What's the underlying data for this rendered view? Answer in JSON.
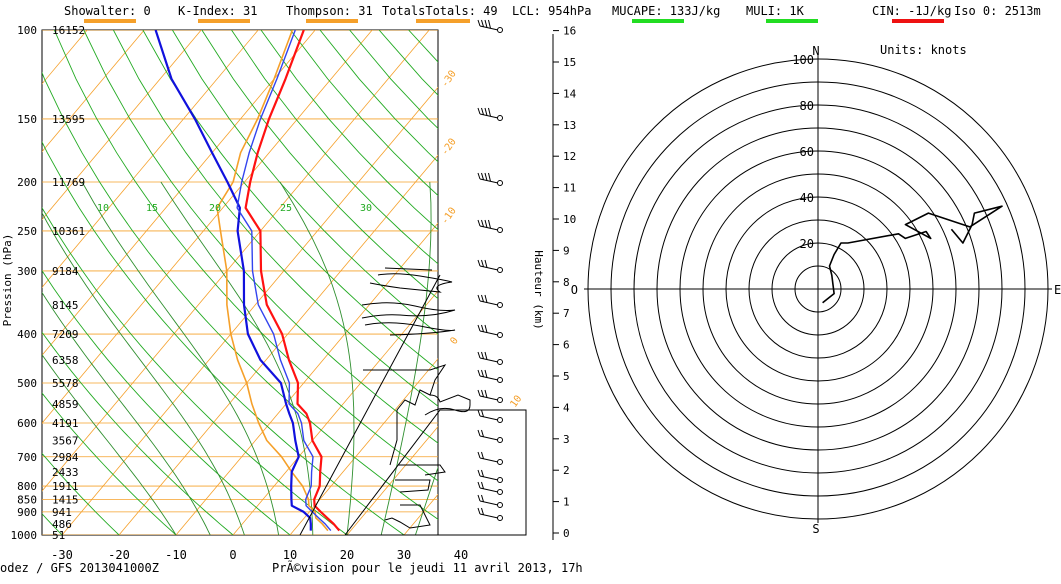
{
  "header": {
    "indices": [
      {
        "label": "Showalter: 0",
        "color": "#f5a02a"
      },
      {
        "label": "K-Index: 31",
        "color": "#f5a02a"
      },
      {
        "label": "Thompson: 31",
        "color": "#f5a02a"
      },
      {
        "label": "TotalsTotals: 49",
        "color": "#f5a02a"
      },
      {
        "label": "LCL: 954hPa",
        "color": ""
      },
      {
        "label": "MUCAPE: 133J/kg",
        "color": "#22dd22"
      },
      {
        "label": "MULI: 1K",
        "color": "#22dd22"
      },
      {
        "label": "CIN: -1J/kg",
        "color": "#ee1111"
      },
      {
        "label": "Iso 0: 2513m",
        "color": ""
      }
    ]
  },
  "footer": {
    "left": "odez / GFS 2013041000Z",
    "center": "PrÃ©vision pour le jeudi 11 avril 2013, 17h"
  },
  "skewt": {
    "ylabel": "Pression (hPa)",
    "right_label": "Hauteur (km)",
    "pressure_ticks": [
      100,
      150,
      200,
      250,
      300,
      400,
      500,
      600,
      700,
      800,
      850,
      900,
      1000
    ],
    "temp_ticks": [
      -30,
      -20,
      -10,
      0,
      10,
      20,
      30,
      40
    ],
    "height_ticks": [
      0,
      1,
      2,
      3,
      4,
      5,
      6,
      7,
      8,
      9,
      10,
      11,
      12,
      13,
      14,
      15,
      16
    ],
    "geopotential_labels": [
      {
        "p": 100,
        "text": "16152"
      },
      {
        "p": 150,
        "text": "13595"
      },
      {
        "p": 200,
        "text": "11769"
      },
      {
        "p": 250,
        "text": "10361"
      },
      {
        "p": 300,
        "text": "9184"
      },
      {
        "p": 350,
        "text": "8145"
      },
      {
        "p": 400,
        "text": "7209"
      },
      {
        "p": 450,
        "text": "6358"
      },
      {
        "p": 500,
        "text": "5578"
      },
      {
        "p": 550,
        "text": "4859"
      },
      {
        "p": 600,
        "text": "4191"
      },
      {
        "p": 650,
        "text": "3567"
      },
      {
        "p": 700,
        "text": "2984"
      },
      {
        "p": 750,
        "text": "2433"
      },
      {
        "p": 800,
        "text": "1911"
      },
      {
        "p": 850,
        "text": "1415"
      },
      {
        "p": 900,
        "text": "941"
      },
      {
        "p": 950,
        "text": "486"
      },
      {
        "p": 1000,
        "text": "51"
      }
    ],
    "isotherm_labels": [
      "-30",
      "-20",
      "-10",
      "0",
      "10"
    ],
    "mixing_ratio_labels": [
      "10",
      "15",
      "20",
      "25",
      "30"
    ],
    "colors": {
      "temperature": "#ff1111",
      "dewpoint": "#1111dd",
      "virtual": "#3344ee",
      "parcel": "#f5a02a",
      "isotherm": "#f5a02a",
      "adiabat": "#22aa22",
      "grid": "#f5a02a"
    }
  },
  "chart_data": [
    {
      "type": "line",
      "x_units": "°C",
      "y_units": "hPa",
      "xlim": [
        -30,
        50
      ],
      "ylim": [
        1000,
        100
      ],
      "series": [
        {
          "name": "",
          "key": "temperature",
          "points": [
            [
              18,
              980
            ],
            [
              16,
              950
            ],
            [
              14,
              925
            ],
            [
              12,
              900
            ],
            [
              10,
              875
            ],
            [
              9,
              850
            ],
            [
              8,
              800
            ],
            [
              6,
              750
            ],
            [
              4,
              700
            ],
            [
              0,
              650
            ],
            [
              -3,
              600
            ],
            [
              -5,
              575
            ],
            [
              -8,
              550
            ],
            [
              -11,
              500
            ],
            [
              -16,
              450
            ],
            [
              -21,
              400
            ],
            [
              -28,
              350
            ],
            [
              -34,
              300
            ],
            [
              -40,
              250
            ],
            [
              -46,
              225
            ],
            [
              -49,
              200
            ],
            [
              -52,
              175
            ],
            [
              -55,
              150
            ],
            [
              -58,
              125
            ],
            [
              -62,
              100
            ]
          ]
        },
        {
          "name": "",
          "key": "dewpoint",
          "points": [
            [
              13,
              980
            ],
            [
              12,
              950
            ],
            [
              11,
              925
            ],
            [
              9,
              900
            ],
            [
              6,
              875
            ],
            [
              5,
              850
            ],
            [
              3,
              800
            ],
            [
              1,
              750
            ],
            [
              0,
              700
            ],
            [
              -3,
              650
            ],
            [
              -6,
              600
            ],
            [
              -8,
              575
            ],
            [
              -10,
              550
            ],
            [
              -14,
              500
            ],
            [
              -21,
              450
            ],
            [
              -27,
              400
            ],
            [
              -32,
              350
            ],
            [
              -37,
              300
            ],
            [
              -44,
              250
            ],
            [
              -47,
              225
            ],
            [
              -53,
              200
            ],
            [
              -60,
              175
            ],
            [
              -68,
              150
            ],
            [
              -78,
              125
            ],
            [
              -88,
              100
            ]
          ]
        },
        {
          "name": "",
          "key": "parcel",
          "points": [
            [
              16,
              980
            ],
            [
              14,
              950
            ],
            [
              12,
              925
            ],
            [
              11,
              900
            ],
            [
              9,
              875
            ],
            [
              8,
              850
            ],
            [
              5,
              800
            ],
            [
              1,
              750
            ],
            [
              -3,
              700
            ],
            [
              -8,
              650
            ],
            [
              -12,
              600
            ],
            [
              -16,
              550
            ],
            [
              -20,
              500
            ],
            [
              -25,
              450
            ],
            [
              -30,
              400
            ],
            [
              -35,
              350
            ],
            [
              -40,
              300
            ],
            [
              -47,
              250
            ],
            [
              -51,
              225
            ],
            [
              -52,
              200
            ],
            [
              -55,
              175
            ],
            [
              -57,
              150
            ],
            [
              -60,
              125
            ],
            [
              -64,
              100
            ]
          ]
        }
      ]
    },
    {
      "type": "scatter",
      "title": "Units: knots",
      "compass": [
        "N",
        "E",
        "S",
        "O"
      ],
      "rings": [
        20,
        40,
        60,
        80,
        100
      ],
      "series": [
        {
          "name": "",
          "key": "hodograph",
          "points": [
            [
              2,
              -6
            ],
            [
              7,
              -2
            ],
            [
              6,
              6
            ],
            [
              5,
              10
            ],
            [
              7,
              15
            ],
            [
              10,
              20
            ],
            [
              13,
              20
            ],
            [
              35,
              24
            ],
            [
              38,
              22
            ],
            [
              47,
              25
            ],
            [
              49,
              22
            ],
            [
              38,
              28
            ],
            [
              48,
              33
            ],
            [
              66,
              27
            ],
            [
              80,
              36
            ],
            [
              68,
              33
            ],
            [
              67,
              28
            ],
            [
              63,
              20
            ],
            [
              58,
              26
            ]
          ]
        }
      ]
    }
  ]
}
